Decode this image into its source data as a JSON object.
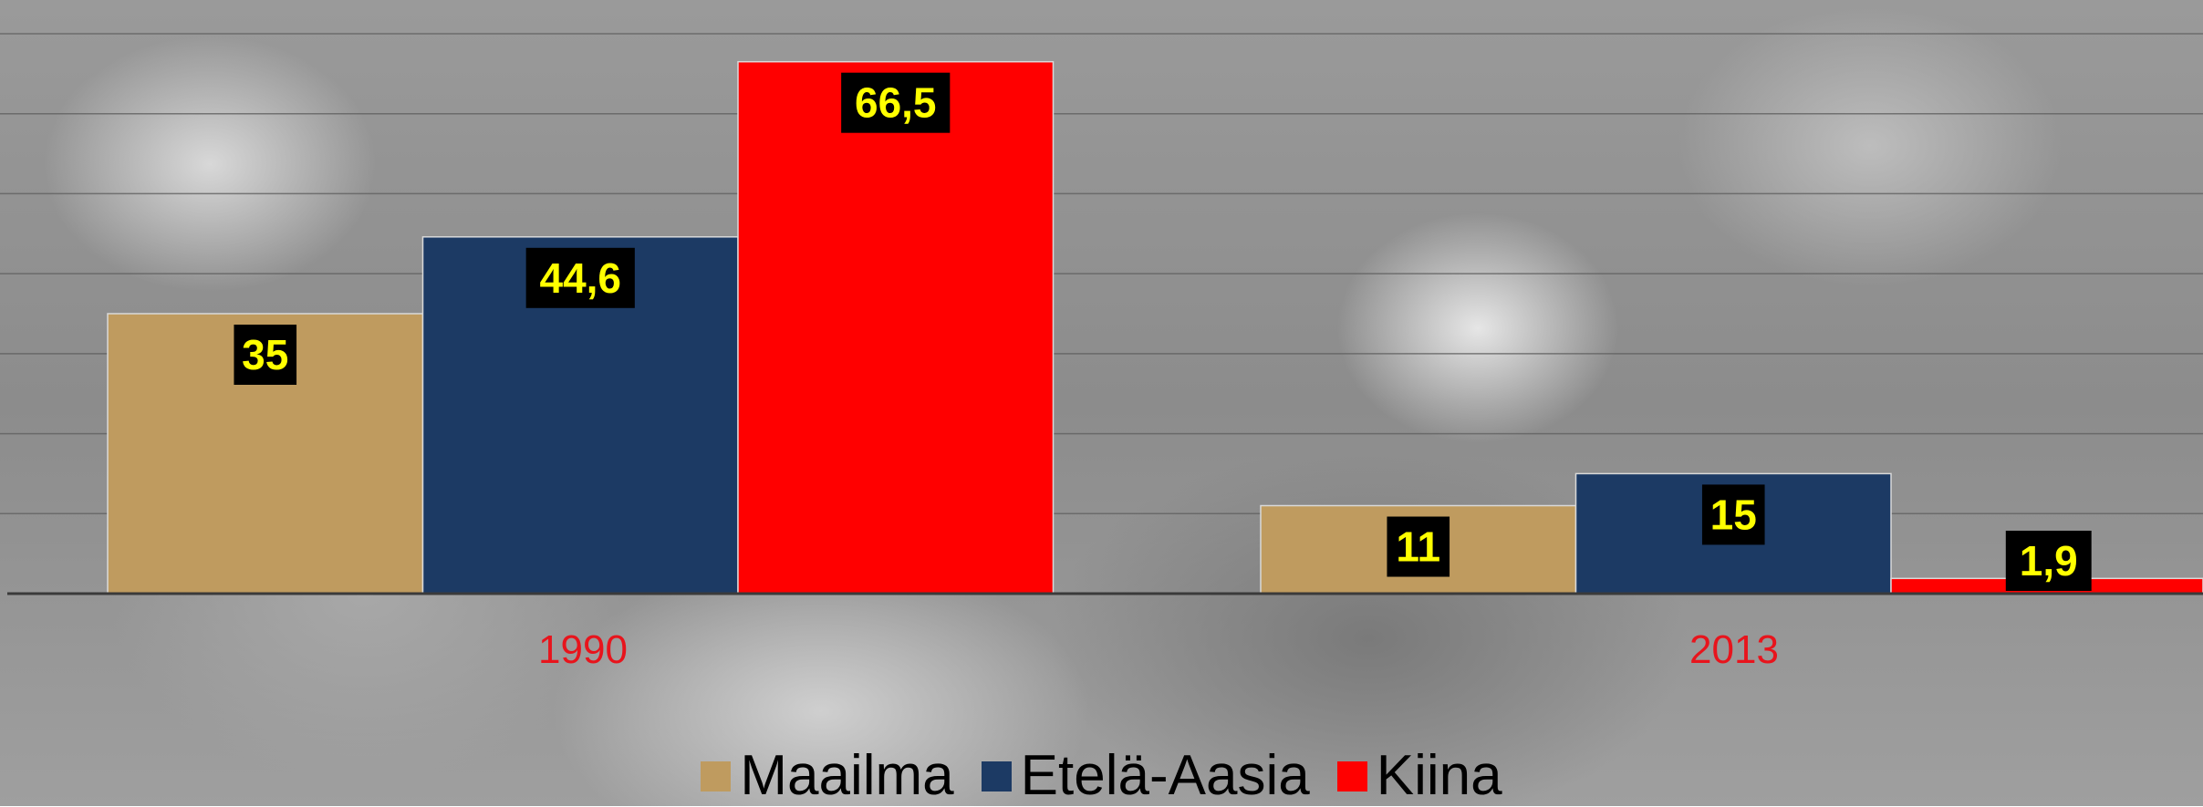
{
  "chart_data": {
    "type": "bar",
    "categories": [
      "1990",
      "2013"
    ],
    "series": [
      {
        "name": "Maailma",
        "values": [
          35,
          11
        ],
        "labels": [
          "35",
          "11"
        ],
        "color": "#bf9b5f"
      },
      {
        "name": "Etelä-Aasia",
        "values": [
          44.6,
          15
        ],
        "labels": [
          "44,6",
          "15"
        ],
        "color": "#1c3a64"
      },
      {
        "name": "Kiina",
        "values": [
          66.5,
          1.9
        ],
        "labels": [
          "66,5",
          "1,9"
        ],
        "color": "#ff0000"
      }
    ],
    "ylim": [
      0,
      70
    ],
    "grid": true,
    "legend": "bottom",
    "category_label_color": "#e8141c",
    "data_label_color": "#ffff00",
    "data_label_background": "#000000"
  }
}
